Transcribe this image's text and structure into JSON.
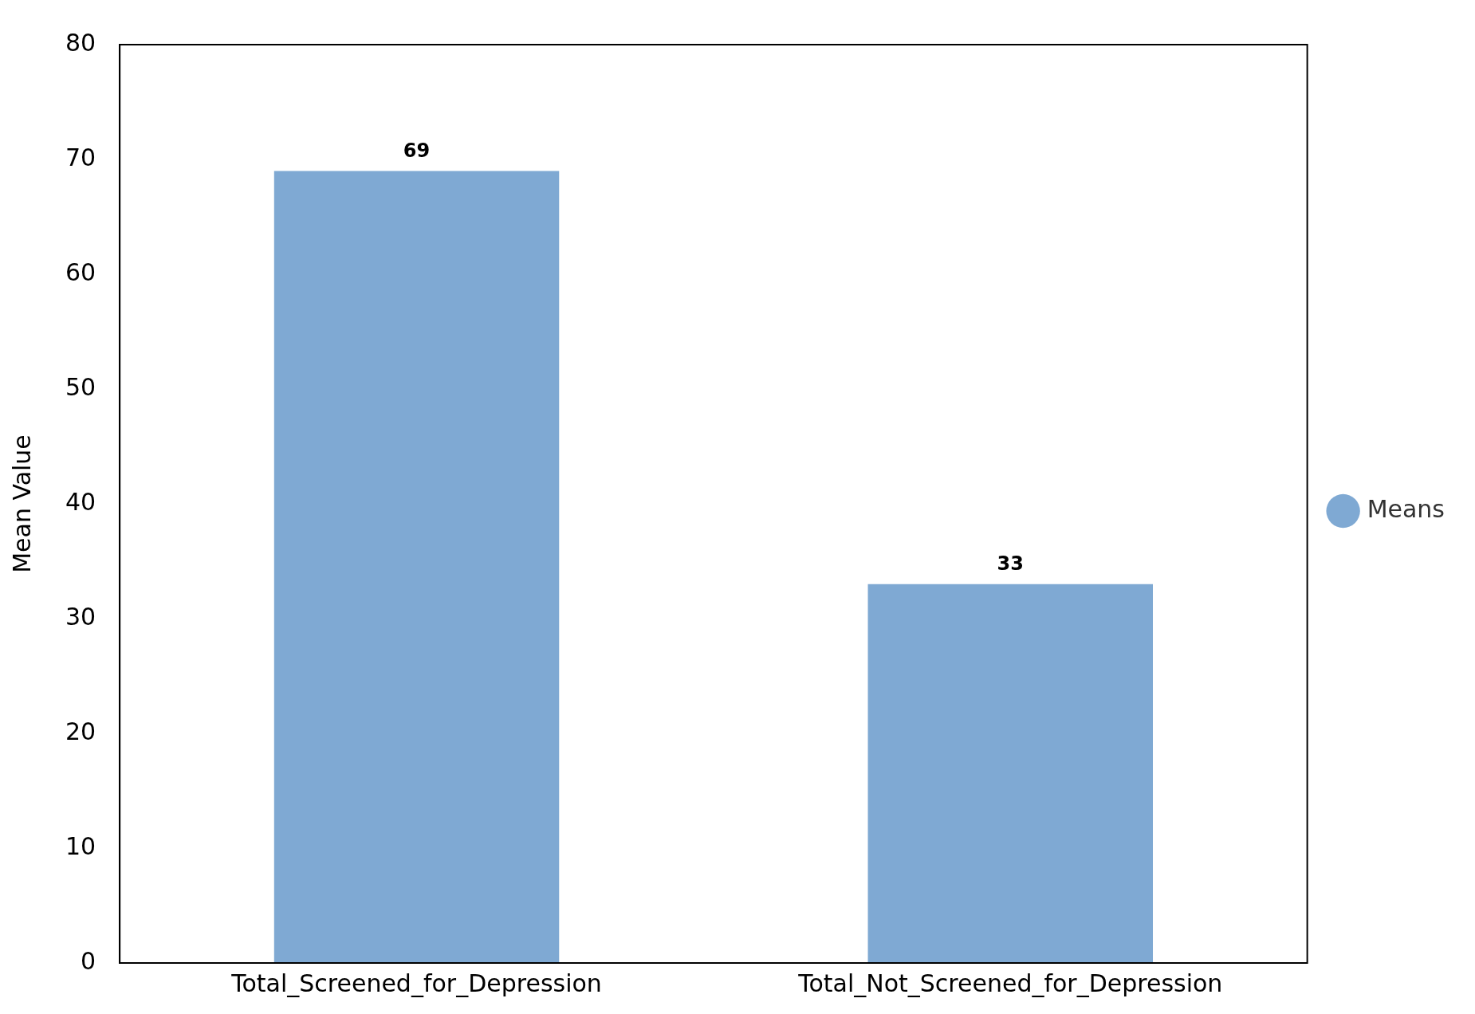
{
  "chart_data": {
    "type": "bar",
    "ylabel": "Mean Value",
    "categories": [
      "Total_Screened_for_Depression",
      "Total_Not_Screened_for_Depression"
    ],
    "series": [
      {
        "name": "Means",
        "color": "#7fa9d3",
        "values": [
          69,
          33
        ]
      }
    ],
    "ylim": [
      0,
      80
    ],
    "yticks": [
      0,
      10,
      20,
      30,
      40,
      50,
      60,
      70,
      80
    ],
    "data_labels": true,
    "grid": false,
    "legend": "right"
  }
}
